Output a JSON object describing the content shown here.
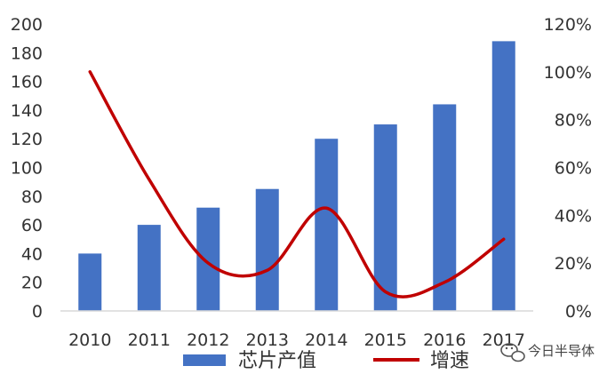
{
  "chart_data": {
    "type": "bar",
    "categories": [
      "2010",
      "2011",
      "2012",
      "2013",
      "2014",
      "2015",
      "2016",
      "2017"
    ],
    "series": [
      {
        "name": "芯片产值",
        "type": "bar",
        "axis": "left",
        "color": "#4472c4",
        "values": [
          40,
          60,
          72,
          85,
          120,
          130,
          144,
          188
        ]
      },
      {
        "name": "增速",
        "type": "line",
        "axis": "right",
        "color": "#c00000",
        "values": [
          100,
          55,
          20,
          17,
          43,
          8,
          12,
          30
        ]
      }
    ],
    "y_left": {
      "min": 0,
      "max": 200,
      "step": 20,
      "ticks": [
        "0",
        "20",
        "40",
        "60",
        "80",
        "100",
        "120",
        "140",
        "160",
        "180",
        "200"
      ]
    },
    "y_right": {
      "min": 0,
      "max": 120,
      "step": 20,
      "ticks": [
        "0%",
        "20%",
        "40%",
        "60%",
        "80%",
        "100%",
        "120%"
      ]
    },
    "grid": false,
    "legend": "bottom",
    "title": "",
    "xlabel": "",
    "ylabel": ""
  },
  "watermark": {
    "text": "今日半导体",
    "icon": "wechat-icon"
  }
}
